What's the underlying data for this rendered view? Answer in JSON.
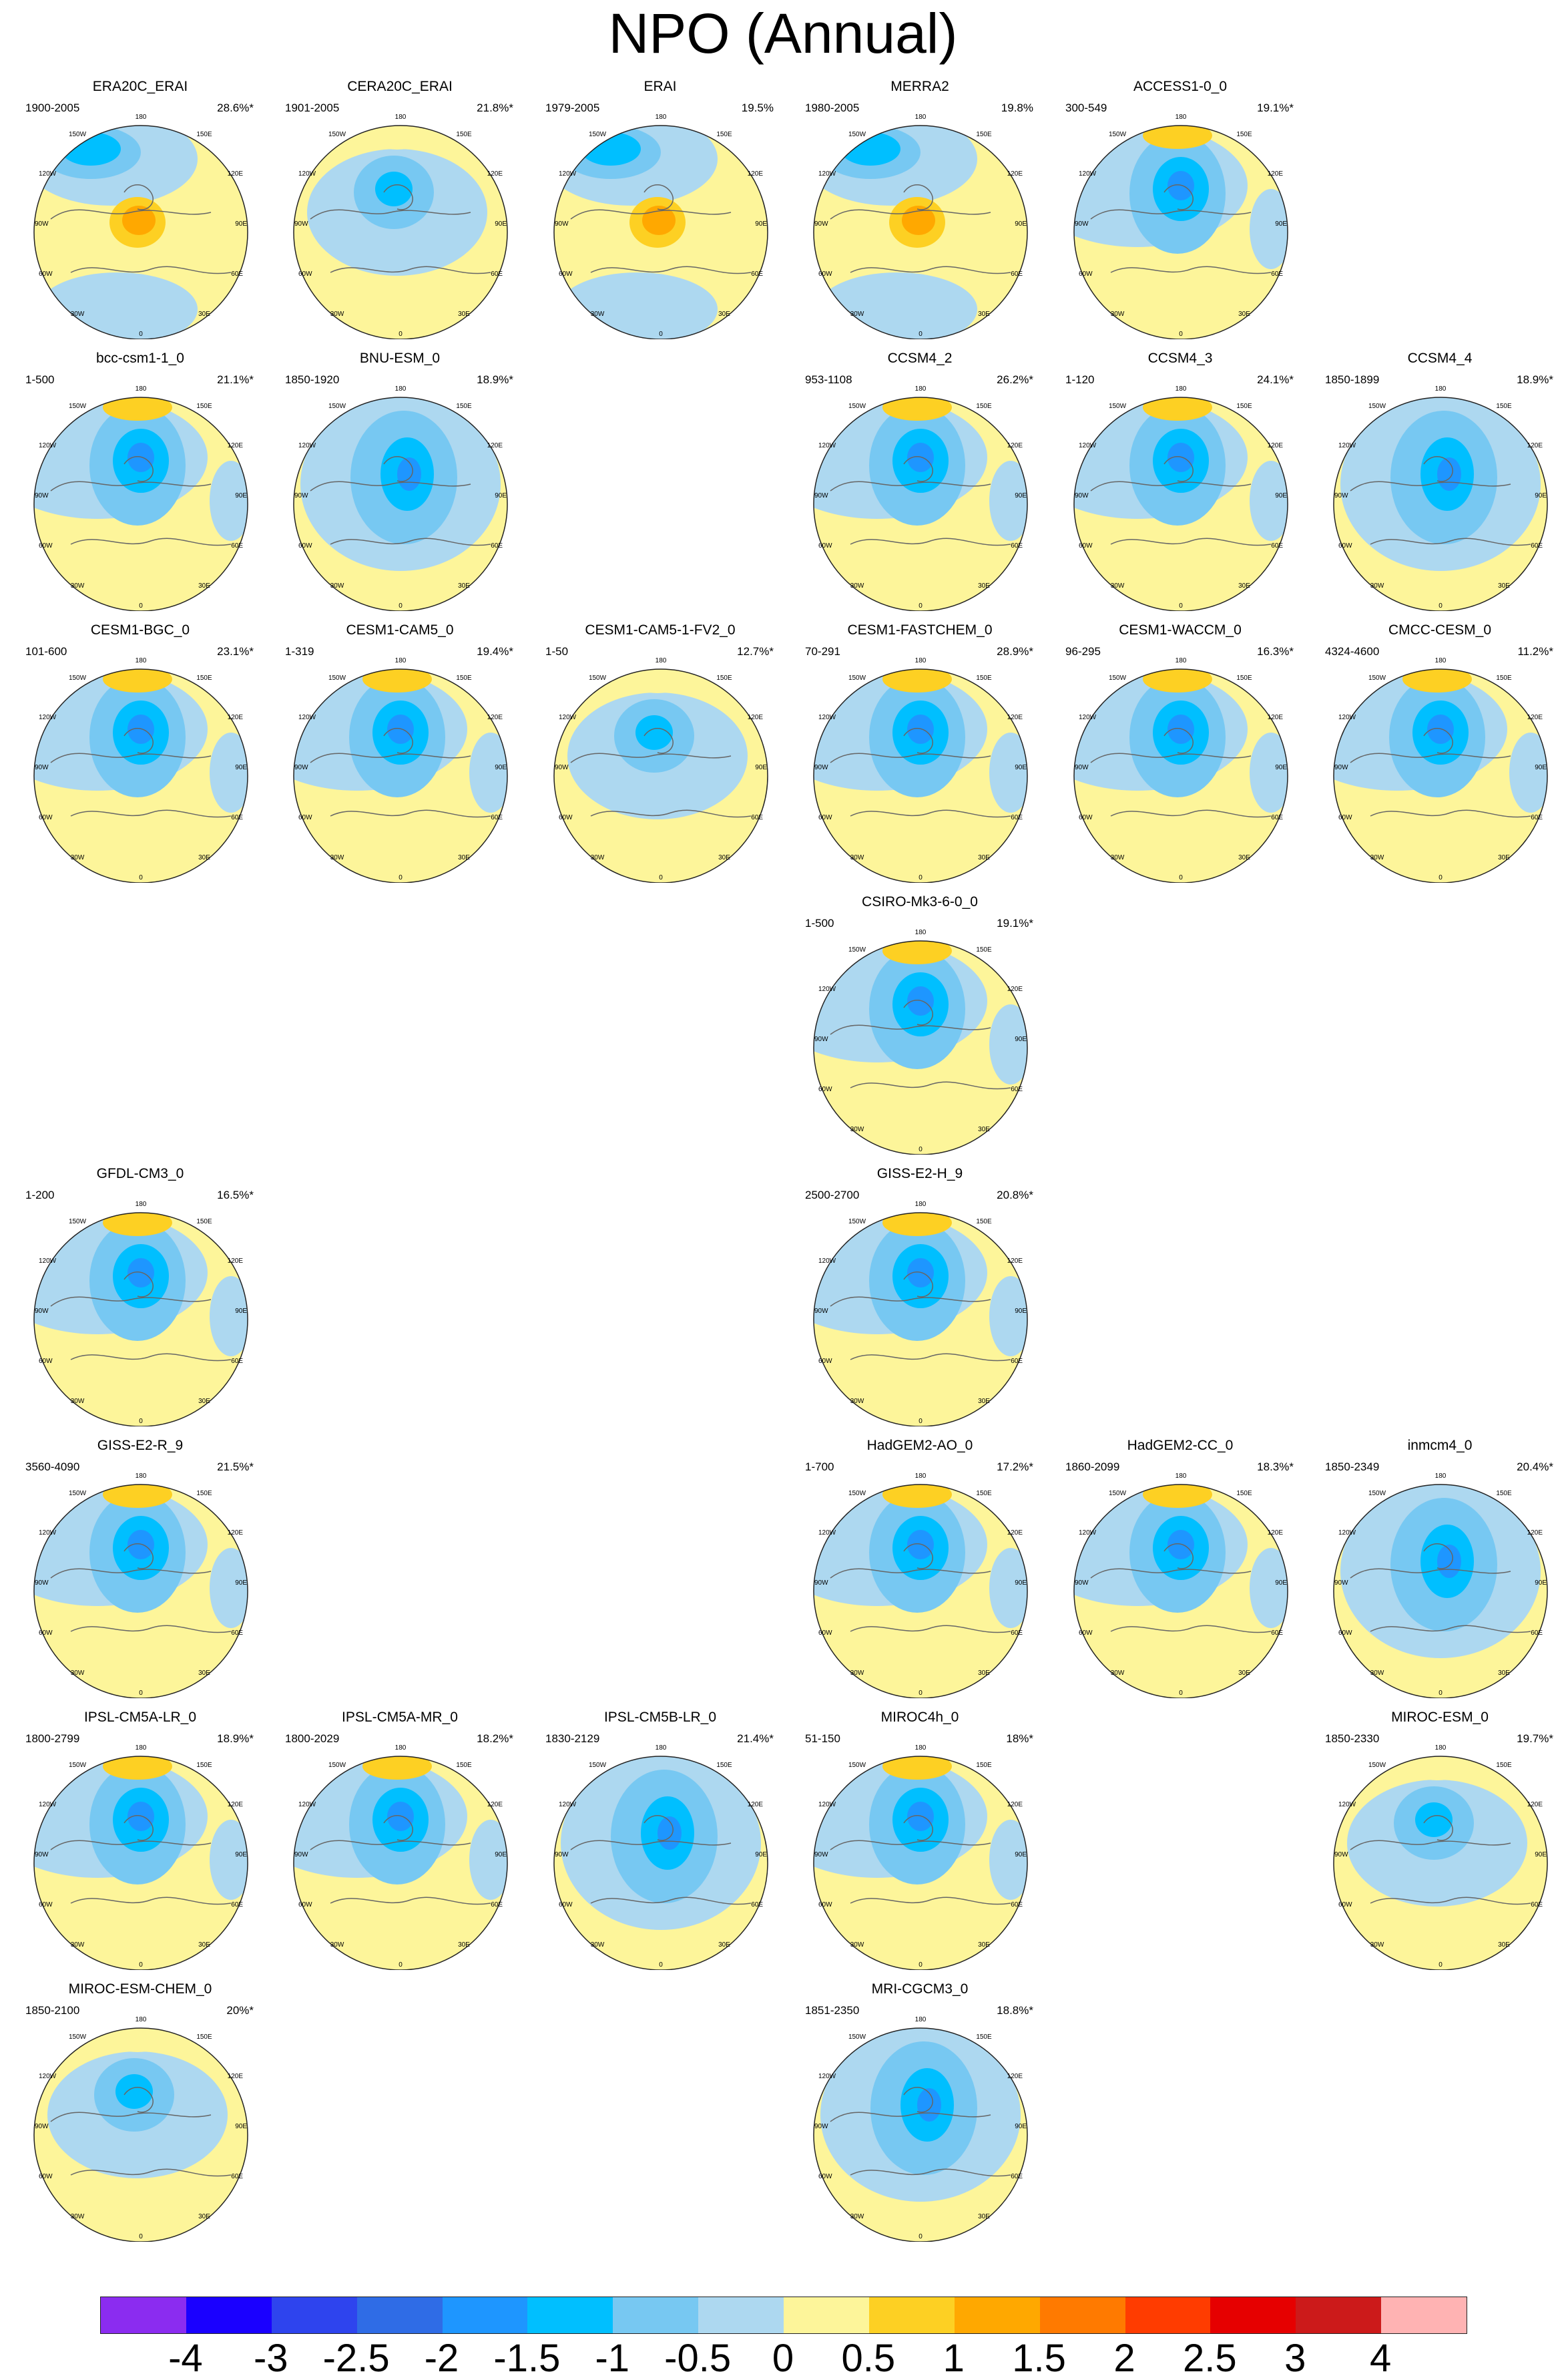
{
  "title": "NPO (Annual)",
  "colors": {
    "land_outline": "#666666",
    "rim": "#222222",
    "scale": [
      "#8b2cf0",
      "#1a00ff",
      "#2e44ee",
      "#2f6ce6",
      "#1e96ff",
      "#00bfff",
      "#77c8f2",
      "#add8f0",
      "#fdf59a",
      "#fdd023",
      "#ffa800",
      "#ff7a00",
      "#ff3c00",
      "#e60000",
      "#cc1a1a",
      "#ffb3b3"
    ]
  },
  "colorbar": {
    "labels": [
      "-4",
      "-3",
      "-2.5",
      "-2",
      "-1.5",
      "-1",
      "-0.5",
      "0",
      "0.5",
      "1",
      "1.5",
      "2",
      "2.5",
      "3",
      "4"
    ]
  },
  "map_labels": {
    "top": "180",
    "upper_left": "150W",
    "upper_right": "150E",
    "left_high": "120W",
    "right_high": "120E",
    "left_mid": "90W",
    "right_mid": "90E",
    "left_low": "60W",
    "right_low": "60E",
    "lower_left": "30W",
    "lower_right": "30E",
    "bottom": "0"
  },
  "panels": [
    {
      "name": "ERA20C_ERAI",
      "period": "1900-2005",
      "pct": "28.6%*",
      "row": 0,
      "col": 0,
      "pattern": "strong"
    },
    {
      "name": "CERA20C_ERAI",
      "period": "1901-2005",
      "pct": "21.8%*",
      "row": 0,
      "col": 1,
      "pattern": "neutral"
    },
    {
      "name": "ERAI",
      "period": "1979-2005",
      "pct": "19.5%",
      "row": 0,
      "col": 2,
      "pattern": "strong"
    },
    {
      "name": "MERRA2",
      "period": "1980-2005",
      "pct": "19.8%",
      "row": 0,
      "col": 3,
      "pattern": "strong"
    },
    {
      "name": "ACCESS1-0_0",
      "period": "300-549",
      "pct": "19.1%*",
      "row": 0,
      "col": 4,
      "pattern": "model"
    },
    {
      "name": "bcc-csm1-1_0",
      "period": "1-500",
      "pct": "21.1%*",
      "row": 1,
      "col": 0,
      "pattern": "model"
    },
    {
      "name": "BNU-ESM_0",
      "period": "1850-1920",
      "pct": "18.9%*",
      "row": 1,
      "col": 1,
      "pattern": "blue"
    },
    {
      "name": "CCSM4_2",
      "period": "953-1108",
      "pct": "26.2%*",
      "row": 1,
      "col": 3,
      "pattern": "model"
    },
    {
      "name": "CCSM4_3",
      "period": "1-120",
      "pct": "24.1%*",
      "row": 1,
      "col": 4,
      "pattern": "model"
    },
    {
      "name": "CCSM4_4",
      "period": "1850-1899",
      "pct": "18.9%*",
      "row": 1,
      "col": 5,
      "pattern": "blue"
    },
    {
      "name": "CESM1-BGC_0",
      "period": "101-600",
      "pct": "23.1%*",
      "row": 2,
      "col": 0,
      "pattern": "model"
    },
    {
      "name": "CESM1-CAM5_0",
      "period": "1-319",
      "pct": "19.4%*",
      "row": 2,
      "col": 1,
      "pattern": "model"
    },
    {
      "name": "CESM1-CAM5-1-FV2_0",
      "period": "1-50",
      "pct": "12.7%*",
      "row": 2,
      "col": 2,
      "pattern": "neutral"
    },
    {
      "name": "CESM1-FASTCHEM_0",
      "period": "70-291",
      "pct": "28.9%*",
      "row": 2,
      "col": 3,
      "pattern": "model"
    },
    {
      "name": "CESM1-WACCM_0",
      "period": "96-295",
      "pct": "16.3%*",
      "row": 2,
      "col": 4,
      "pattern": "model"
    },
    {
      "name": "CMCC-CESM_0",
      "period": "4324-4600",
      "pct": "11.2%*",
      "row": 2,
      "col": 5,
      "pattern": "model"
    },
    {
      "name": "CSIRO-Mk3-6-0_0",
      "period": "1-500",
      "pct": "19.1%*",
      "row": 3,
      "col": 3,
      "pattern": "model"
    },
    {
      "name": "GFDL-CM3_0",
      "period": "1-200",
      "pct": "16.5%*",
      "row": 4,
      "col": 0,
      "pattern": "model"
    },
    {
      "name": "GISS-E2-H_9",
      "period": "2500-2700",
      "pct": "20.8%*",
      "row": 4,
      "col": 3,
      "pattern": "model"
    },
    {
      "name": "GISS-E2-R_9",
      "period": "3560-4090",
      "pct": "21.5%*",
      "row": 5,
      "col": 0,
      "pattern": "model"
    },
    {
      "name": "HadGEM2-AO_0",
      "period": "1-700",
      "pct": "17.2%*",
      "row": 5,
      "col": 3,
      "pattern": "model"
    },
    {
      "name": "HadGEM2-CC_0",
      "period": "1860-2099",
      "pct": "18.3%*",
      "row": 5,
      "col": 4,
      "pattern": "model"
    },
    {
      "name": "inmcm4_0",
      "period": "1850-2349",
      "pct": "20.4%*",
      "row": 5,
      "col": 5,
      "pattern": "blue"
    },
    {
      "name": "IPSL-CM5A-LR_0",
      "period": "1800-2799",
      "pct": "18.9%*",
      "row": 6,
      "col": 0,
      "pattern": "model"
    },
    {
      "name": "IPSL-CM5A-MR_0",
      "period": "1800-2029",
      "pct": "18.2%*",
      "row": 6,
      "col": 1,
      "pattern": "model"
    },
    {
      "name": "IPSL-CM5B-LR_0",
      "period": "1830-2129",
      "pct": "21.4%*",
      "row": 6,
      "col": 2,
      "pattern": "blue"
    },
    {
      "name": "MIROC4h_0",
      "period": "51-150",
      "pct": "18%*",
      "row": 6,
      "col": 3,
      "pattern": "model"
    },
    {
      "name": "MIROC-ESM_0",
      "period": "1850-2330",
      "pct": "19.7%*",
      "row": 6,
      "col": 5,
      "pattern": "neutral"
    },
    {
      "name": "MIROC-ESM-CHEM_0",
      "period": "1850-2100",
      "pct": "20%*",
      "row": 7,
      "col": 0,
      "pattern": "neutral"
    },
    {
      "name": "MRI-CGCM3_0",
      "period": "1851-2350",
      "pct": "18.8%*",
      "row": 7,
      "col": 3,
      "pattern": "blue"
    }
  ]
}
